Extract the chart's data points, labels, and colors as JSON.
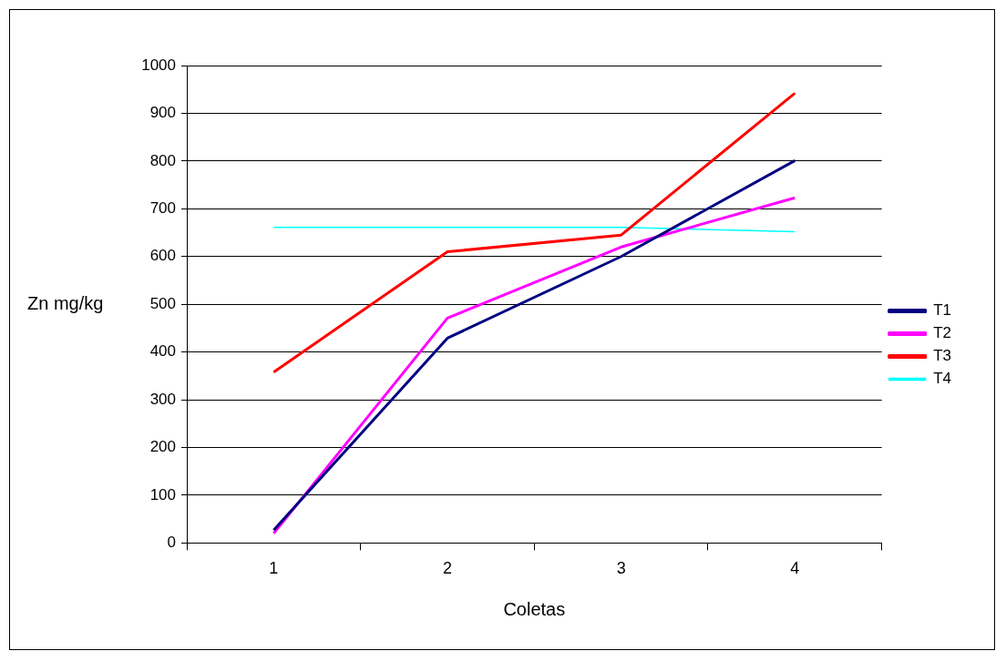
{
  "chart_data": {
    "type": "line",
    "xlabel": "Coletas",
    "ylabel": "Zn mg/kg",
    "categories": [
      "1",
      "2",
      "3",
      "4"
    ],
    "series": [
      {
        "name": "T1",
        "color": "#000080",
        "values": [
          27,
          429,
          600,
          801
        ]
      },
      {
        "name": "T2",
        "color": "#ff00ff",
        "values": [
          20,
          471,
          620,
          723
        ]
      },
      {
        "name": "T3",
        "color": "#ff0000",
        "values": [
          358,
          610,
          645,
          942
        ]
      },
      {
        "name": "T4",
        "color": "#00ffff",
        "values": [
          661,
          661,
          661,
          652
        ]
      }
    ],
    "ylim": [
      0,
      1000
    ],
    "yticks": [
      0,
      100,
      200,
      300,
      400,
      500,
      600,
      700,
      800,
      900,
      1000
    ],
    "grid": "y",
    "legend": "right",
    "marker": "none",
    "line_style": "solid"
  }
}
